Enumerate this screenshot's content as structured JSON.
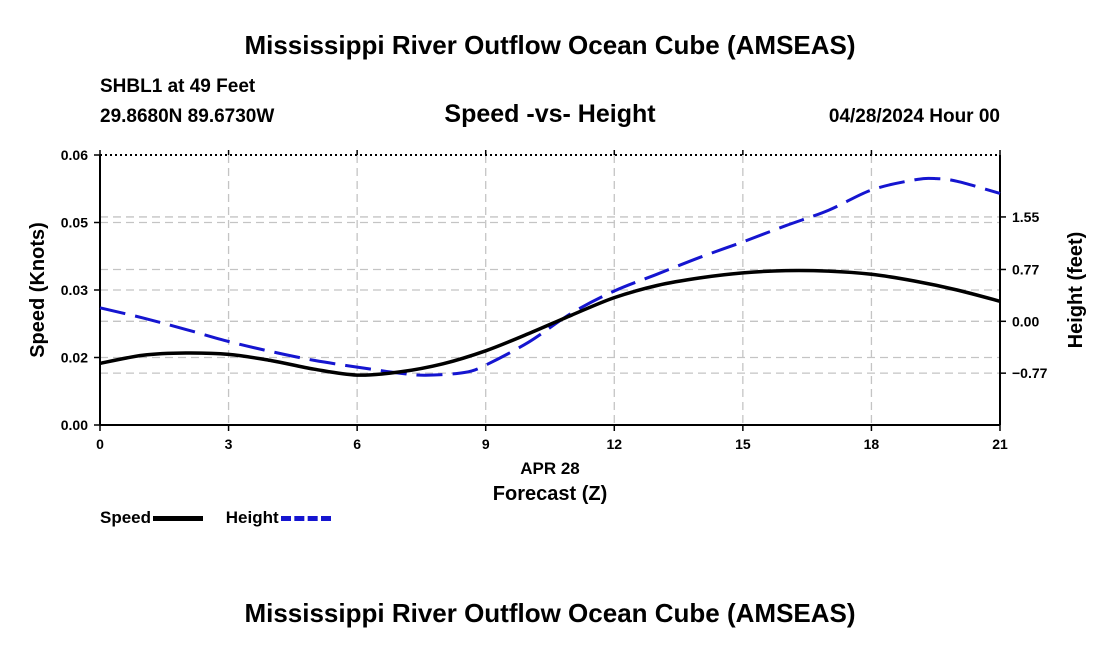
{
  "header": {
    "title": "Mississippi River Outflow Ocean Cube (AMSEAS)",
    "station": "SHBL1 at 49 Feet",
    "coordinates": "29.8680N  89.6730W",
    "datetime": "04/28/2024 Hour 00"
  },
  "footer": {
    "title": "Mississippi River Outflow Ocean Cube (AMSEAS)"
  },
  "chart_data": {
    "type": "line",
    "title": "Speed -vs- Height",
    "xlabel": "Forecast (Z)",
    "xlabel_date": "APR 28",
    "ylabel": "Speed (Knots)",
    "y2label": "Height (feet)",
    "xlim": [
      0,
      21
    ],
    "xticks": [
      0,
      3,
      6,
      9,
      12,
      15,
      18,
      21
    ],
    "xtick_labels": [
      "0",
      "3",
      "6",
      "9",
      "12",
      "15",
      "18",
      "21"
    ],
    "ylim": [
      0,
      0.06
    ],
    "yticks": [
      0,
      0.015,
      0.03,
      0.045,
      0.06
    ],
    "ytick_labels": [
      "0.00",
      "0.02",
      "0.03",
      "0.05",
      "0.06"
    ],
    "y2lim": [
      -1.54,
      2.47
    ],
    "y2ticks": [
      -0.77,
      0,
      0.77,
      1.55
    ],
    "y2tick_labels": [
      "−0.77",
      "0.00",
      "0.77",
      "1.55"
    ],
    "grid": true,
    "series": [
      {
        "name": "Speed",
        "axis": "left",
        "color": "#000000",
        "style": "solid",
        "x": [
          0,
          1,
          2,
          3,
          4,
          5,
          6,
          7,
          8,
          9,
          10,
          11,
          12,
          13,
          14,
          15,
          16,
          17,
          18,
          19,
          20,
          21
        ],
        "y": [
          0.0137,
          0.0155,
          0.016,
          0.0157,
          0.0143,
          0.0124,
          0.0111,
          0.0118,
          0.0136,
          0.0165,
          0.0203,
          0.0244,
          0.0283,
          0.031,
          0.0327,
          0.0338,
          0.0343,
          0.0342,
          0.0335,
          0.032,
          0.03,
          0.0275
        ]
      },
      {
        "name": "Height",
        "axis": "right",
        "color": "#1515d0",
        "style": "dashed",
        "x": [
          0,
          1,
          2,
          3,
          4,
          5,
          6,
          7,
          7.6,
          8.5,
          9,
          10,
          11,
          12,
          13,
          14,
          15,
          16,
          17,
          18,
          19,
          19.5,
          20,
          21
        ],
        "y": [
          0.2,
          0.05,
          -0.12,
          -0.3,
          -0.45,
          -0.58,
          -0.68,
          -0.77,
          -0.8,
          -0.76,
          -0.65,
          -0.31,
          0.12,
          0.45,
          0.7,
          0.95,
          1.18,
          1.42,
          1.65,
          1.95,
          2.1,
          2.12,
          2.08,
          1.9
        ]
      }
    ],
    "legend": [
      "Speed",
      "Height"
    ],
    "legend_position": "bottom-left"
  }
}
